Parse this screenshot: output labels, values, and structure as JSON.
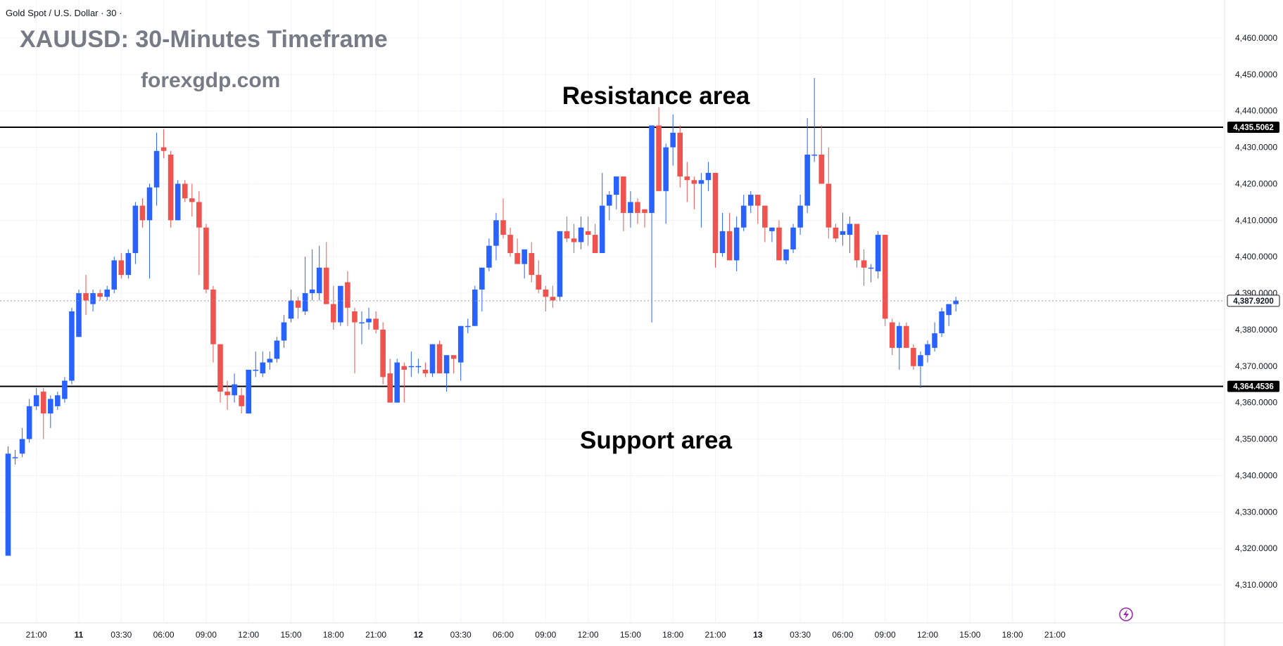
{
  "header": {
    "symbol_line": "Gold Spot / U.S. Dollar · 30 ·",
    "title": "XAUUSD: 30-Minutes Timeframe",
    "watermark": "forexgdp.com"
  },
  "annotations": {
    "resistance_label": "Resistance area",
    "support_label": "Support area"
  },
  "colors": {
    "up": "#2962ff",
    "down": "#ef5350",
    "level_line": "#000000",
    "grid": "#f0f3fa",
    "axis_text": "#131722",
    "title_text": "#787b86"
  },
  "icons": {
    "bottom_right": "lightning-icon"
  },
  "chart_data": {
    "type": "candlestick",
    "title": "XAUUSD: 30-Minutes Timeframe",
    "symbol": "Gold Spot / U.S. Dollar",
    "interval": "30",
    "ylim": [
      4305,
      4465
    ],
    "y_ticks": [
      4310,
      4320,
      4330,
      4340,
      4350,
      4360,
      4370,
      4380,
      4390,
      4400,
      4410,
      4420,
      4430,
      4440,
      4450,
      4460
    ],
    "y_tick_labels": [
      "4,310.0000",
      "4,320.0000",
      "4,330.0000",
      "4,340.0000",
      "4,350.0000",
      "4,360.0000",
      "4,370.0000",
      "4,380.0000",
      "4,390.0000",
      "4,400.0000",
      "4,410.0000",
      "4,420.0000",
      "4,430.0000",
      "4,440.0000",
      "4,450.0000",
      "4,460.0000"
    ],
    "x_ticks": [
      {
        "bar": 4,
        "label": "21:00"
      },
      {
        "bar": 10,
        "label": "11"
      },
      {
        "bar": 16,
        "label": "03:30"
      },
      {
        "bar": 22,
        "label": "06:00"
      },
      {
        "bar": 28,
        "label": "09:00"
      },
      {
        "bar": 34,
        "label": "12:00"
      },
      {
        "bar": 40,
        "label": "15:00"
      },
      {
        "bar": 46,
        "label": "18:00"
      },
      {
        "bar": 52,
        "label": "21:00"
      },
      {
        "bar": 58,
        "label": "12"
      },
      {
        "bar": 64,
        "label": "03:30"
      },
      {
        "bar": 70,
        "label": "06:00"
      },
      {
        "bar": 76,
        "label": "09:00"
      },
      {
        "bar": 82,
        "label": "12:00"
      },
      {
        "bar": 88,
        "label": "15:00"
      },
      {
        "bar": 94,
        "label": "18:00"
      },
      {
        "bar": 100,
        "label": "21:00"
      },
      {
        "bar": 106,
        "label": "13"
      },
      {
        "bar": 112,
        "label": "03:30"
      },
      {
        "bar": 118,
        "label": "06:00"
      },
      {
        "bar": 124,
        "label": "09:00"
      },
      {
        "bar": 130,
        "label": "12:00"
      },
      {
        "bar": 136,
        "label": "15:00"
      },
      {
        "bar": 142,
        "label": "18:00"
      },
      {
        "bar": 148,
        "label": "21:00"
      }
    ],
    "levels": [
      {
        "name": "Resistance area",
        "value": 4435.5062,
        "label": "4,435.5062"
      },
      {
        "name": "Support area",
        "value": 4364.4536,
        "label": "4,364.4536"
      }
    ],
    "last_price": {
      "value": 4387.92,
      "label": "4,387.9200"
    },
    "candles": [
      {
        "o": 4318,
        "h": 4348,
        "l": 4318,
        "c": 4346
      },
      {
        "o": 4345,
        "h": 4347,
        "l": 4343,
        "c": 4345
      },
      {
        "o": 4346,
        "h": 4353,
        "l": 4345,
        "c": 4350
      },
      {
        "o": 4350,
        "h": 4361,
        "l": 4349,
        "c": 4359
      },
      {
        "o": 4359,
        "h": 4364,
        "l": 4358,
        "c": 4362
      },
      {
        "o": 4363,
        "h": 4364,
        "l": 4350,
        "c": 4357
      },
      {
        "o": 4357,
        "h": 4362,
        "l": 4353,
        "c": 4361
      },
      {
        "o": 4359,
        "h": 4363,
        "l": 4358,
        "c": 4362
      },
      {
        "o": 4361,
        "h": 4367,
        "l": 4360,
        "c": 4366
      },
      {
        "o": 4366,
        "h": 4386,
        "l": 4365,
        "c": 4385
      },
      {
        "o": 4378,
        "h": 4391,
        "l": 4378,
        "c": 4390
      },
      {
        "o": 4390,
        "h": 4395,
        "l": 4384,
        "c": 4388
      },
      {
        "o": 4387,
        "h": 4391,
        "l": 4385,
        "c": 4390
      },
      {
        "o": 4390,
        "h": 4391,
        "l": 4388,
        "c": 4389
      },
      {
        "o": 4389,
        "h": 4392,
        "l": 4388,
        "c": 4391
      },
      {
        "o": 4391,
        "h": 4400,
        "l": 4390,
        "c": 4399
      },
      {
        "o": 4399,
        "h": 4401,
        "l": 4394,
        "c": 4395
      },
      {
        "o": 4395,
        "h": 4402,
        "l": 4394,
        "c": 4401
      },
      {
        "o": 4401,
        "h": 4415,
        "l": 4398,
        "c": 4414
      },
      {
        "o": 4414,
        "h": 4416,
        "l": 4408,
        "c": 4410
      },
      {
        "o": 4410,
        "h": 4420,
        "l": 4394,
        "c": 4419
      },
      {
        "o": 4419,
        "h": 4434,
        "l": 4414,
        "c": 4429
      },
      {
        "o": 4430,
        "h": 4435,
        "l": 4427,
        "c": 4429
      },
      {
        "o": 4428,
        "h": 4429,
        "l": 4408,
        "c": 4410
      },
      {
        "o": 4410,
        "h": 4421,
        "l": 4410,
        "c": 4420
      },
      {
        "o": 4420,
        "h": 4421,
        "l": 4415,
        "c": 4416
      },
      {
        "o": 4416,
        "h": 4420,
        "l": 4411,
        "c": 4415
      },
      {
        "o": 4415,
        "h": 4418,
        "l": 4395,
        "c": 4408
      },
      {
        "o": 4408,
        "h": 4409,
        "l": 4390,
        "c": 4391
      },
      {
        "o": 4391,
        "h": 4392,
        "l": 4371,
        "c": 4376
      },
      {
        "o": 4376,
        "h": 4376,
        "l": 4360,
        "c": 4363
      },
      {
        "o": 4363,
        "h": 4366,
        "l": 4358,
        "c": 4362
      },
      {
        "o": 4362,
        "h": 4368,
        "l": 4360,
        "c": 4365
      },
      {
        "o": 4362,
        "h": 4364,
        "l": 4357,
        "c": 4359
      },
      {
        "o": 4357,
        "h": 4368,
        "l": 4357,
        "c": 4369
      },
      {
        "o": 4369,
        "h": 4374,
        "l": 4367,
        "c": 4369
      },
      {
        "o": 4368,
        "h": 4374,
        "l": 4367,
        "c": 4371
      },
      {
        "o": 4371,
        "h": 4374,
        "l": 4369,
        "c": 4372
      },
      {
        "o": 4372,
        "h": 4378,
        "l": 4371,
        "c": 4377
      },
      {
        "o": 4377,
        "h": 4384,
        "l": 4375,
        "c": 4382
      },
      {
        "o": 4383,
        "h": 4391,
        "l": 4382,
        "c": 4388
      },
      {
        "o": 4388,
        "h": 4389,
        "l": 4383,
        "c": 4386
      },
      {
        "o": 4385,
        "h": 4400,
        "l": 4384,
        "c": 4390
      },
      {
        "o": 4390,
        "h": 4402,
        "l": 4388,
        "c": 4391
      },
      {
        "o": 4390,
        "h": 4403,
        "l": 4388,
        "c": 4397
      },
      {
        "o": 4397,
        "h": 4404,
        "l": 4387,
        "c": 4387
      },
      {
        "o": 4387,
        "h": 4392,
        "l": 4380,
        "c": 4382
      },
      {
        "o": 4382,
        "h": 4391,
        "l": 4381,
        "c": 4392
      },
      {
        "o": 4393,
        "h": 4396,
        "l": 4381,
        "c": 4386
      },
      {
        "o": 4385,
        "h": 4386,
        "l": 4368,
        "c": 4382
      },
      {
        "o": 4382,
        "h": 4385,
        "l": 4376,
        "c": 4382
      },
      {
        "o": 4382,
        "h": 4386,
        "l": 4380,
        "c": 4383
      },
      {
        "o": 4383,
        "h": 4385,
        "l": 4379,
        "c": 4380
      },
      {
        "o": 4380,
        "h": 4382,
        "l": 4365,
        "c": 4367
      },
      {
        "o": 4368,
        "h": 4372,
        "l": 4360,
        "c": 4360
      },
      {
        "o": 4360,
        "h": 4372,
        "l": 4360,
        "c": 4371
      },
      {
        "o": 4370,
        "h": 4371,
        "l": 4360,
        "c": 4369
      },
      {
        "o": 4370,
        "h": 4374,
        "l": 4367,
        "c": 4370
      },
      {
        "o": 4370,
        "h": 4372,
        "l": 4368,
        "c": 4370
      },
      {
        "o": 4369,
        "h": 4371,
        "l": 4367,
        "c": 4368
      },
      {
        "o": 4368,
        "h": 4376,
        "l": 4367,
        "c": 4376
      },
      {
        "o": 4376,
        "h": 4377,
        "l": 4368,
        "c": 4368
      },
      {
        "o": 4368,
        "h": 4373,
        "l": 4363,
        "c": 4373
      },
      {
        "o": 4373,
        "h": 4373,
        "l": 4368,
        "c": 4372
      },
      {
        "o": 4371,
        "h": 4381,
        "l": 4366,
        "c": 4381
      },
      {
        "o": 4381,
        "h": 4383,
        "l": 4379,
        "c": 4381
      },
      {
        "o": 4381,
        "h": 4392,
        "l": 4381,
        "c": 4391
      },
      {
        "o": 4391,
        "h": 4397,
        "l": 4385,
        "c": 4397
      },
      {
        "o": 4397,
        "h": 4405,
        "l": 4396,
        "c": 4403
      },
      {
        "o": 4403,
        "h": 4412,
        "l": 4399,
        "c": 4410
      },
      {
        "o": 4410,
        "h": 4416,
        "l": 4405,
        "c": 4406
      },
      {
        "o": 4406,
        "h": 4408,
        "l": 4400,
        "c": 4401
      },
      {
        "o": 4401,
        "h": 4405,
        "l": 4398,
        "c": 4398
      },
      {
        "o": 4398,
        "h": 4402,
        "l": 4394,
        "c": 4402
      },
      {
        "o": 4401,
        "h": 4404,
        "l": 4393,
        "c": 4395
      },
      {
        "o": 4395,
        "h": 4399,
        "l": 4390,
        "c": 4391
      },
      {
        "o": 4391,
        "h": 4392,
        "l": 4385,
        "c": 4389
      },
      {
        "o": 4389,
        "h": 4392,
        "l": 4386,
        "c": 4388
      },
      {
        "o": 4389,
        "h": 4407,
        "l": 4388,
        "c": 4407
      },
      {
        "o": 4407,
        "h": 4411,
        "l": 4404,
        "c": 4405
      },
      {
        "o": 4405,
        "h": 4409,
        "l": 4401,
        "c": 4404
      },
      {
        "o": 4404,
        "h": 4411,
        "l": 4402,
        "c": 4408
      },
      {
        "o": 4407,
        "h": 4411,
        "l": 4403,
        "c": 4406
      },
      {
        "o": 4406,
        "h": 4409,
        "l": 4401,
        "c": 4401
      },
      {
        "o": 4401,
        "h": 4423,
        "l": 4401,
        "c": 4414
      },
      {
        "o": 4414,
        "h": 4418,
        "l": 4410,
        "c": 4417
      },
      {
        "o": 4417,
        "h": 4422,
        "l": 4413,
        "c": 4422
      },
      {
        "o": 4422,
        "h": 4422,
        "l": 4407,
        "c": 4412
      },
      {
        "o": 4412,
        "h": 4418,
        "l": 4408,
        "c": 4415
      },
      {
        "o": 4415,
        "h": 4416,
        "l": 4409,
        "c": 4412
      },
      {
        "o": 4413,
        "h": 4413,
        "l": 4408,
        "c": 4412
      },
      {
        "o": 4412,
        "h": 4436,
        "l": 4382,
        "c": 4436
      },
      {
        "o": 4436,
        "h": 4441,
        "l": 4418,
        "c": 4418
      },
      {
        "o": 4418,
        "h": 4431,
        "l": 4409,
        "c": 4430
      },
      {
        "o": 4430,
        "h": 4439,
        "l": 4425,
        "c": 4434
      },
      {
        "o": 4434,
        "h": 4436,
        "l": 4419,
        "c": 4422
      },
      {
        "o": 4422,
        "h": 4426,
        "l": 4415,
        "c": 4421
      },
      {
        "o": 4421,
        "h": 4422,
        "l": 4413,
        "c": 4420
      },
      {
        "o": 4420,
        "h": 4423,
        "l": 4408,
        "c": 4421
      },
      {
        "o": 4421,
        "h": 4426,
        "l": 4418,
        "c": 4423
      },
      {
        "o": 4423,
        "h": 4423,
        "l": 4397,
        "c": 4401
      },
      {
        "o": 4401,
        "h": 4412,
        "l": 4400,
        "c": 4407
      },
      {
        "o": 4407,
        "h": 4412,
        "l": 4399,
        "c": 4399
      },
      {
        "o": 4399,
        "h": 4411,
        "l": 4396,
        "c": 4408
      },
      {
        "o": 4408,
        "h": 4417,
        "l": 4407,
        "c": 4414
      },
      {
        "o": 4414,
        "h": 4418,
        "l": 4412,
        "c": 4417
      },
      {
        "o": 4417,
        "h": 4417,
        "l": 4409,
        "c": 4414
      },
      {
        "o": 4414,
        "h": 4414,
        "l": 4404,
        "c": 4408
      },
      {
        "o": 4407,
        "h": 4408,
        "l": 4404,
        "c": 4408
      },
      {
        "o": 4408,
        "h": 4410,
        "l": 4399,
        "c": 4399
      },
      {
        "o": 4399,
        "h": 4402,
        "l": 4398,
        "c": 4402
      },
      {
        "o": 4402,
        "h": 4409,
        "l": 4401,
        "c": 4408
      },
      {
        "o": 4408,
        "h": 4417,
        "l": 4406,
        "c": 4414
      },
      {
        "o": 4414,
        "h": 4438,
        "l": 4412,
        "c": 4428
      },
      {
        "o": 4428,
        "h": 4449,
        "l": 4426,
        "c": 4428
      },
      {
        "o": 4428,
        "h": 4436,
        "l": 4420,
        "c": 4420
      },
      {
        "o": 4420,
        "h": 4430,
        "l": 4405,
        "c": 4408
      },
      {
        "o": 4408,
        "h": 4409,
        "l": 4404,
        "c": 4405
      },
      {
        "o": 4406,
        "h": 4412,
        "l": 4403,
        "c": 4407
      },
      {
        "o": 4406,
        "h": 4411,
        "l": 4401,
        "c": 4409
      },
      {
        "o": 4409,
        "h": 4409,
        "l": 4397,
        "c": 4399
      },
      {
        "o": 4399,
        "h": 4402,
        "l": 4392,
        "c": 4397
      },
      {
        "o": 4397,
        "h": 4398,
        "l": 4393,
        "c": 4397
      },
      {
        "o": 4396,
        "h": 4407,
        "l": 4394,
        "c": 4406
      },
      {
        "o": 4406,
        "h": 4406,
        "l": 4381,
        "c": 4383
      },
      {
        "o": 4382,
        "h": 4383,
        "l": 4373,
        "c": 4375
      },
      {
        "o": 4375,
        "h": 4382,
        "l": 4369,
        "c": 4381
      },
      {
        "o": 4381,
        "h": 4382,
        "l": 4375,
        "c": 4375
      },
      {
        "o": 4375,
        "h": 4376,
        "l": 4369,
        "c": 4370
      },
      {
        "o": 4370,
        "h": 4374,
        "l": 4364,
        "c": 4373
      },
      {
        "o": 4373,
        "h": 4377,
        "l": 4371,
        "c": 4376
      },
      {
        "o": 4375,
        "h": 4382,
        "l": 4374,
        "c": 4379
      },
      {
        "o": 4379,
        "h": 4386,
        "l": 4378,
        "c": 4385
      },
      {
        "o": 4384,
        "h": 4387,
        "l": 4381,
        "c": 4387
      },
      {
        "o": 4387,
        "h": 4389,
        "l": 4385,
        "c": 4388
      }
    ]
  }
}
